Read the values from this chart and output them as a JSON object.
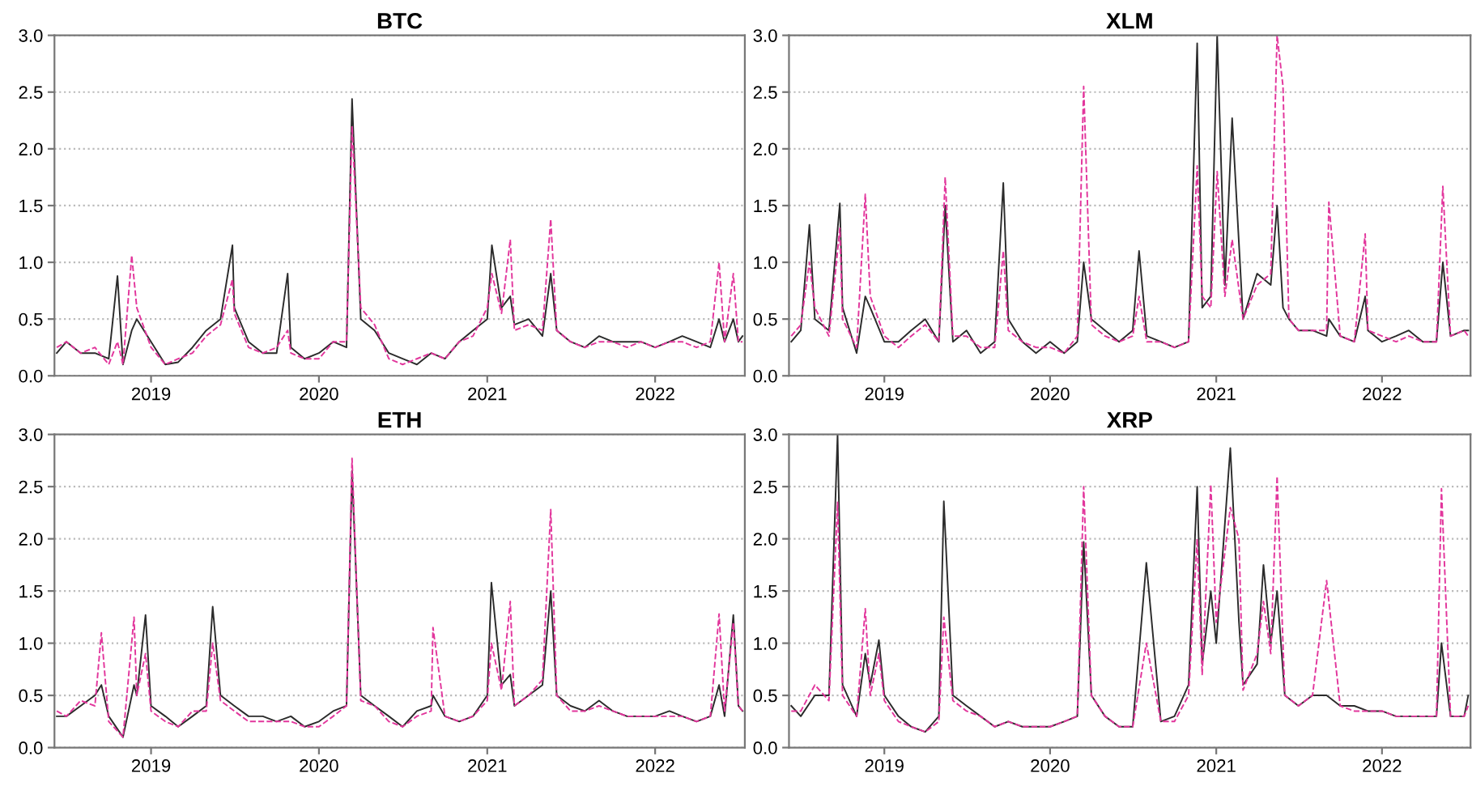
{
  "chart_data": [
    {
      "type": "line",
      "title": "BTC",
      "grid": "y",
      "xlim": [
        "2018-06-05",
        "2022-07-15"
      ],
      "ylim": [
        0.0,
        3.0
      ],
      "yticks": [
        {
          "value": 0,
          "label": "0.0"
        },
        0.5,
        {
          "value": 1,
          "label": "1.0"
        },
        1.5,
        {
          "value": 2,
          "label": "2.0"
        },
        2.5,
        {
          "value": 3,
          "label": "3.0"
        }
      ],
      "xticks": [
        {
          "value": "2019-01-01",
          "label": "2019"
        },
        {
          "value": "2020-01-01",
          "label": "2020"
        },
        {
          "value": "2021-01-01",
          "label": "2021"
        },
        {
          "value": "2022-01-01",
          "label": "2022"
        }
      ],
      "x": [
        "2018-06-10",
        "2018-07-01",
        "2018-08-01",
        "2018-09-01",
        "2018-10-01",
        "2018-10-20",
        "2018-11-01",
        "2018-11-20",
        "2018-12-01",
        "2019-01-01",
        "2019-02-01",
        "2019-03-01",
        "2019-04-01",
        "2019-05-01",
        "2019-06-01",
        "2019-06-27",
        "2019-07-01",
        "2019-08-01",
        "2019-09-01",
        "2019-10-01",
        "2019-10-25",
        "2019-11-01",
        "2019-12-01",
        "2020-01-01",
        "2020-02-01",
        "2020-03-01",
        "2020-03-13",
        "2020-04-01",
        "2020-05-01",
        "2020-06-01",
        "2020-07-01",
        "2020-08-01",
        "2020-09-01",
        "2020-10-01",
        "2020-11-01",
        "2020-12-01",
        "2021-01-01",
        "2021-01-11",
        "2021-02-01",
        "2021-02-20",
        "2021-03-01",
        "2021-04-01",
        "2021-05-01",
        "2021-05-19",
        "2021-06-01",
        "2021-07-01",
        "2021-08-01",
        "2021-09-01",
        "2021-10-01",
        "2021-11-01",
        "2021-12-01",
        "2022-01-01",
        "2022-02-01",
        "2022-03-01",
        "2022-04-01",
        "2022-05-01",
        "2022-05-20",
        "2022-06-01",
        "2022-06-20",
        "2022-07-01",
        "2022-07-10"
      ],
      "series": [
        {
          "color": "#2b2b2b",
          "line_style": "solid",
          "values": [
            0.2,
            0.3,
            0.2,
            0.2,
            0.15,
            0.88,
            0.1,
            0.4,
            0.5,
            0.3,
            0.1,
            0.12,
            0.25,
            0.4,
            0.5,
            1.15,
            0.6,
            0.3,
            0.2,
            0.2,
            0.9,
            0.25,
            0.15,
            0.2,
            0.3,
            0.25,
            2.44,
            0.5,
            0.4,
            0.2,
            0.15,
            0.1,
            0.2,
            0.15,
            0.3,
            0.4,
            0.5,
            1.15,
            0.6,
            0.7,
            0.45,
            0.5,
            0.35,
            0.9,
            0.4,
            0.3,
            0.25,
            0.35,
            0.3,
            0.3,
            0.3,
            0.25,
            0.3,
            0.35,
            0.3,
            0.25,
            0.5,
            0.3,
            0.5,
            0.3,
            0.35
          ]
        },
        {
          "color": "#e2369c",
          "line_style": "dashed",
          "values": [
            0.25,
            0.3,
            0.2,
            0.25,
            0.1,
            0.3,
            0.1,
            1.06,
            0.6,
            0.25,
            0.1,
            0.15,
            0.2,
            0.35,
            0.45,
            0.85,
            0.55,
            0.25,
            0.2,
            0.25,
            0.4,
            0.2,
            0.15,
            0.15,
            0.3,
            0.3,
            2.2,
            0.6,
            0.45,
            0.15,
            0.1,
            0.15,
            0.2,
            0.15,
            0.3,
            0.35,
            0.6,
            0.9,
            0.55,
            1.2,
            0.4,
            0.45,
            0.4,
            1.38,
            0.4,
            0.3,
            0.25,
            0.3,
            0.3,
            0.25,
            0.3,
            0.25,
            0.3,
            0.3,
            0.25,
            0.3,
            1.0,
            0.3,
            0.9,
            0.3,
            0.3
          ]
        }
      ]
    },
    {
      "type": "line",
      "title": "XLM",
      "grid": "y",
      "xlim": [
        "2018-06-05",
        "2022-07-15"
      ],
      "ylim": [
        0.0,
        3.0
      ],
      "yticks": [
        {
          "value": 0,
          "label": "0.0"
        },
        0.5,
        {
          "value": 1,
          "label": "1.0"
        },
        1.5,
        {
          "value": 2,
          "label": "2.0"
        },
        2.5,
        {
          "value": 3,
          "label": "3.0"
        }
      ],
      "xticks": [
        {
          "value": "2019-01-01",
          "label": "2019"
        },
        {
          "value": "2020-01-01",
          "label": "2020"
        },
        {
          "value": "2021-01-01",
          "label": "2021"
        },
        {
          "value": "2022-01-01",
          "label": "2022"
        }
      ],
      "x": [
        "2018-06-10",
        "2018-07-01",
        "2018-07-20",
        "2018-08-01",
        "2018-09-01",
        "2018-09-25",
        "2018-10-01",
        "2018-11-01",
        "2018-11-20",
        "2018-12-01",
        "2019-01-01",
        "2019-02-01",
        "2019-03-01",
        "2019-04-01",
        "2019-05-01",
        "2019-05-15",
        "2019-06-01",
        "2019-07-01",
        "2019-08-01",
        "2019-09-01",
        "2019-09-20",
        "2019-10-01",
        "2019-11-01",
        "2019-12-01",
        "2020-01-01",
        "2020-02-01",
        "2020-03-01",
        "2020-03-15",
        "2020-04-01",
        "2020-05-01",
        "2020-06-01",
        "2020-07-01",
        "2020-07-15",
        "2020-08-01",
        "2020-09-01",
        "2020-10-01",
        "2020-11-01",
        "2020-11-20",
        "2020-12-01",
        "2020-12-20",
        "2021-01-03",
        "2021-01-20",
        "2021-02-05",
        "2021-03-01",
        "2021-04-01",
        "2021-05-01",
        "2021-05-15",
        "2021-05-28",
        "2021-06-10",
        "2021-07-01",
        "2021-08-01",
        "2021-09-01",
        "2021-09-06",
        "2021-10-01",
        "2021-11-01",
        "2021-11-25",
        "2021-12-01",
        "2022-01-01",
        "2022-02-01",
        "2022-03-01",
        "2022-04-01",
        "2022-05-01",
        "2022-05-15",
        "2022-06-01",
        "2022-07-01",
        "2022-07-10"
      ],
      "series": [
        {
          "color": "#2b2b2b",
          "line_style": "solid",
          "values": [
            0.3,
            0.4,
            1.33,
            0.5,
            0.4,
            1.52,
            0.6,
            0.2,
            0.7,
            0.6,
            0.3,
            0.3,
            0.4,
            0.5,
            0.3,
            1.5,
            0.3,
            0.4,
            0.2,
            0.3,
            1.7,
            0.5,
            0.3,
            0.2,
            0.3,
            0.2,
            0.3,
            1.0,
            0.5,
            0.4,
            0.3,
            0.4,
            1.1,
            0.35,
            0.3,
            0.25,
            0.3,
            2.93,
            0.6,
            0.7,
            3.0,
            0.8,
            2.27,
            0.5,
            0.9,
            0.8,
            1.5,
            0.6,
            0.5,
            0.4,
            0.4,
            0.35,
            0.5,
            0.35,
            0.3,
            0.7,
            0.4,
            0.3,
            0.35,
            0.4,
            0.3,
            0.3,
            1.0,
            0.35,
            0.4,
            0.4
          ]
        },
        {
          "color": "#e2369c",
          "line_style": "dashed",
          "values": [
            0.35,
            0.45,
            1.0,
            0.6,
            0.35,
            1.3,
            0.5,
            0.25,
            1.6,
            0.7,
            0.35,
            0.25,
            0.35,
            0.45,
            0.3,
            1.75,
            0.35,
            0.35,
            0.25,
            0.25,
            1.1,
            0.4,
            0.3,
            0.25,
            0.25,
            0.2,
            0.35,
            2.55,
            0.45,
            0.35,
            0.3,
            0.35,
            0.7,
            0.3,
            0.3,
            0.25,
            0.3,
            1.85,
            0.7,
            0.6,
            1.8,
            0.7,
            1.2,
            0.5,
            0.8,
            0.9,
            3.0,
            2.55,
            0.5,
            0.4,
            0.4,
            0.4,
            1.53,
            0.35,
            0.3,
            1.25,
            0.4,
            0.35,
            0.3,
            0.35,
            0.3,
            0.3,
            1.67,
            0.35,
            0.4,
            0.35
          ]
        }
      ]
    },
    {
      "type": "line",
      "title": "ETH",
      "grid": "y",
      "xlim": [
        "2018-06-05",
        "2022-07-15"
      ],
      "ylim": [
        0.0,
        3.0
      ],
      "yticks": [
        {
          "value": 0,
          "label": "0.0"
        },
        0.5,
        {
          "value": 1,
          "label": "1.0"
        },
        1.5,
        {
          "value": 2,
          "label": "2.0"
        },
        2.5,
        {
          "value": 3,
          "label": "3.0"
        }
      ],
      "xticks": [
        {
          "value": "2019-01-01",
          "label": "2019"
        },
        {
          "value": "2020-01-01",
          "label": "2020"
        },
        {
          "value": "2021-01-01",
          "label": "2021"
        },
        {
          "value": "2022-01-01",
          "label": "2022"
        }
      ],
      "x": [
        "2018-06-10",
        "2018-07-01",
        "2018-08-01",
        "2018-09-01",
        "2018-09-15",
        "2018-10-01",
        "2018-11-01",
        "2018-11-25",
        "2018-12-01",
        "2018-12-20",
        "2019-01-01",
        "2019-02-01",
        "2019-03-01",
        "2019-04-01",
        "2019-05-01",
        "2019-05-15",
        "2019-06-01",
        "2019-07-01",
        "2019-08-01",
        "2019-09-01",
        "2019-10-01",
        "2019-11-01",
        "2019-12-01",
        "2020-01-01",
        "2020-02-01",
        "2020-03-01",
        "2020-03-13",
        "2020-04-01",
        "2020-05-01",
        "2020-06-01",
        "2020-07-01",
        "2020-08-01",
        "2020-09-01",
        "2020-09-05",
        "2020-10-01",
        "2020-11-01",
        "2020-12-01",
        "2021-01-01",
        "2021-01-10",
        "2021-02-01",
        "2021-02-20",
        "2021-03-01",
        "2021-04-01",
        "2021-05-01",
        "2021-05-19",
        "2021-06-01",
        "2021-07-01",
        "2021-08-01",
        "2021-09-01",
        "2021-10-01",
        "2021-11-01",
        "2021-12-01",
        "2022-01-01",
        "2022-02-01",
        "2022-03-01",
        "2022-04-01",
        "2022-05-01",
        "2022-05-20",
        "2022-06-01",
        "2022-06-20",
        "2022-07-01",
        "2022-07-10"
      ],
      "series": [
        {
          "color": "#2b2b2b",
          "line_style": "solid",
          "values": [
            0.3,
            0.3,
            0.4,
            0.5,
            0.6,
            0.3,
            0.1,
            0.6,
            0.5,
            1.27,
            0.4,
            0.3,
            0.2,
            0.3,
            0.4,
            1.35,
            0.5,
            0.4,
            0.3,
            0.3,
            0.25,
            0.3,
            0.2,
            0.25,
            0.35,
            0.4,
            2.65,
            0.5,
            0.4,
            0.3,
            0.2,
            0.35,
            0.4,
            0.5,
            0.3,
            0.25,
            0.3,
            0.5,
            1.58,
            0.6,
            0.7,
            0.4,
            0.5,
            0.6,
            1.5,
            0.5,
            0.4,
            0.35,
            0.45,
            0.35,
            0.3,
            0.3,
            0.3,
            0.35,
            0.3,
            0.25,
            0.3,
            0.6,
            0.3,
            1.27,
            0.4,
            0.35
          ]
        },
        {
          "color": "#e2369c",
          "line_style": "dashed",
          "values": [
            0.35,
            0.3,
            0.45,
            0.4,
            1.1,
            0.25,
            0.1,
            1.25,
            0.5,
            0.9,
            0.35,
            0.25,
            0.2,
            0.35,
            0.35,
            1.0,
            0.45,
            0.35,
            0.25,
            0.25,
            0.25,
            0.25,
            0.2,
            0.2,
            0.3,
            0.4,
            2.77,
            0.45,
            0.4,
            0.25,
            0.2,
            0.3,
            0.35,
            1.15,
            0.3,
            0.25,
            0.3,
            0.45,
            1.0,
            0.55,
            1.4,
            0.4,
            0.5,
            0.65,
            2.28,
            0.5,
            0.35,
            0.35,
            0.4,
            0.35,
            0.3,
            0.3,
            0.3,
            0.3,
            0.3,
            0.25,
            0.3,
            1.28,
            0.35,
            1.2,
            0.4,
            0.35
          ]
        }
      ]
    },
    {
      "type": "line",
      "title": "XRP",
      "grid": "y",
      "xlim": [
        "2018-06-05",
        "2022-07-15"
      ],
      "ylim": [
        0.0,
        3.0
      ],
      "yticks": [
        {
          "value": 0,
          "label": "0.0"
        },
        0.5,
        {
          "value": 1,
          "label": "1.0"
        },
        1.5,
        {
          "value": 2,
          "label": "2.0"
        },
        2.5,
        {
          "value": 3,
          "label": "3.0"
        }
      ],
      "xticks": [
        {
          "value": "2019-01-01",
          "label": "2019"
        },
        {
          "value": "2020-01-01",
          "label": "2020"
        },
        {
          "value": "2021-01-01",
          "label": "2021"
        },
        {
          "value": "2022-01-01",
          "label": "2022"
        }
      ],
      "x": [
        "2018-06-10",
        "2018-07-01",
        "2018-08-01",
        "2018-09-01",
        "2018-09-20",
        "2018-10-01",
        "2018-11-01",
        "2018-11-20",
        "2018-12-01",
        "2018-12-20",
        "2019-01-01",
        "2019-02-01",
        "2019-03-01",
        "2019-04-01",
        "2019-05-01",
        "2019-05-12",
        "2019-06-01",
        "2019-07-01",
        "2019-08-01",
        "2019-09-01",
        "2019-10-01",
        "2019-11-01",
        "2019-12-01",
        "2020-01-01",
        "2020-02-01",
        "2020-03-01",
        "2020-03-15",
        "2020-04-01",
        "2020-05-01",
        "2020-06-01",
        "2020-07-01",
        "2020-07-31",
        "2020-09-01",
        "2020-10-01",
        "2020-11-01",
        "2020-11-20",
        "2020-12-01",
        "2020-12-20",
        "2021-01-01",
        "2021-02-01",
        "2021-02-20",
        "2021-03-01",
        "2021-04-01",
        "2021-04-15",
        "2021-05-01",
        "2021-05-15",
        "2021-06-01",
        "2021-07-01",
        "2021-08-01",
        "2021-09-01",
        "2021-10-01",
        "2021-11-01",
        "2021-12-01",
        "2022-01-01",
        "2022-02-01",
        "2022-03-01",
        "2022-04-01",
        "2022-05-01",
        "2022-05-12",
        "2022-06-01",
        "2022-07-01",
        "2022-07-10"
      ],
      "series": [
        {
          "color": "#2b2b2b",
          "line_style": "solid",
          "values": [
            0.4,
            0.3,
            0.5,
            0.5,
            3.0,
            0.6,
            0.3,
            0.9,
            0.6,
            1.03,
            0.5,
            0.3,
            0.2,
            0.15,
            0.3,
            2.36,
            0.5,
            0.4,
            0.3,
            0.2,
            0.25,
            0.2,
            0.2,
            0.2,
            0.25,
            0.3,
            1.97,
            0.5,
            0.3,
            0.2,
            0.2,
            1.77,
            0.25,
            0.3,
            0.6,
            2.5,
            0.8,
            1.5,
            1.0,
            2.87,
            1.2,
            0.6,
            0.8,
            1.75,
            1.0,
            1.5,
            0.5,
            0.4,
            0.5,
            0.5,
            0.4,
            0.4,
            0.35,
            0.35,
            0.3,
            0.3,
            0.3,
            0.3,
            1.0,
            0.3,
            0.3,
            0.5
          ]
        },
        {
          "color": "#e2369c",
          "line_style": "dashed",
          "values": [
            0.35,
            0.35,
            0.6,
            0.45,
            2.35,
            0.5,
            0.3,
            1.33,
            0.5,
            0.9,
            0.45,
            0.25,
            0.2,
            0.15,
            0.25,
            1.25,
            0.45,
            0.35,
            0.3,
            0.2,
            0.25,
            0.2,
            0.2,
            0.2,
            0.25,
            0.3,
            2.5,
            0.5,
            0.3,
            0.2,
            0.2,
            1.0,
            0.25,
            0.25,
            0.5,
            2.0,
            0.7,
            2.52,
            1.2,
            2.3,
            2.0,
            0.55,
            0.9,
            1.4,
            0.9,
            2.6,
            0.5,
            0.4,
            0.5,
            1.6,
            0.4,
            0.35,
            0.35,
            0.35,
            0.3,
            0.3,
            0.3,
            0.3,
            2.48,
            0.3,
            0.3,
            0.4
          ]
        }
      ]
    }
  ]
}
